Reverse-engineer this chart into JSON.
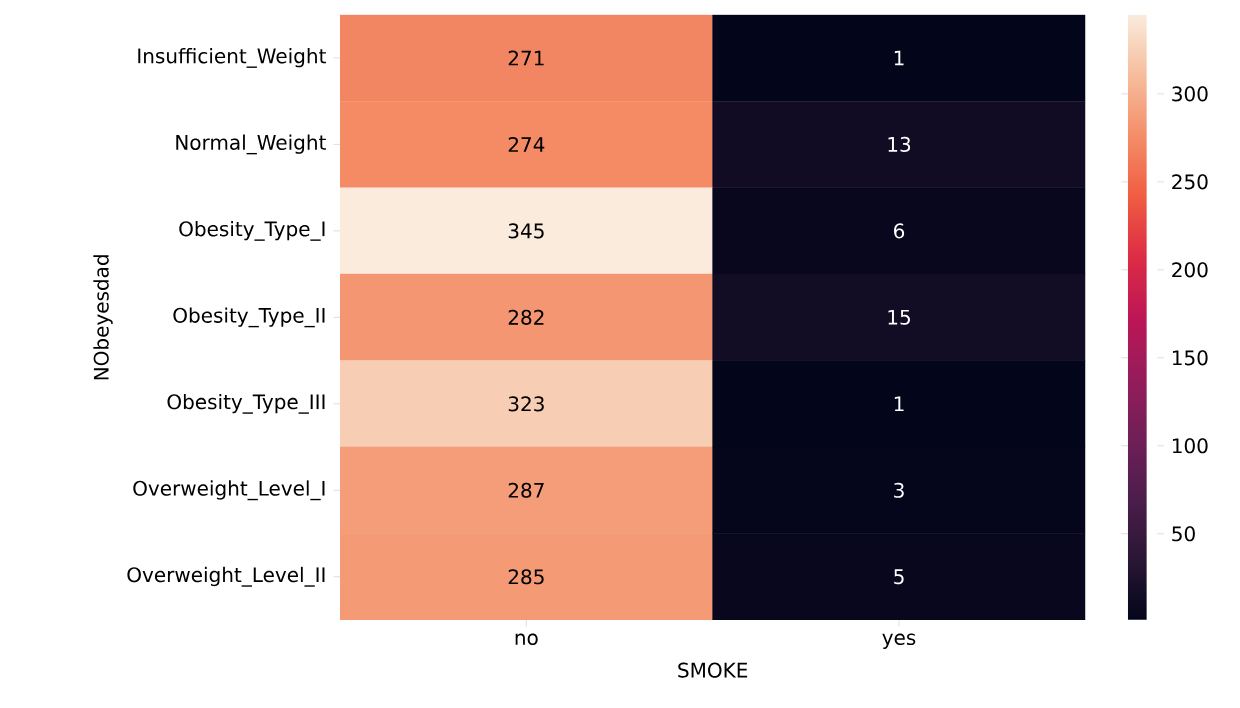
{
  "chart_data": {
    "type": "heatmap",
    "xlabel": "SMOKE",
    "ylabel": "NObeyesdad",
    "categories": [
      "no",
      "yes"
    ],
    "y_categories": [
      "Insufficient_Weight",
      "Normal_Weight",
      "Obesity_Type_I",
      "Obesity_Type_II",
      "Obesity_Type_III",
      "Overweight_Level_I",
      "Overweight_Level_II"
    ],
    "cells": [
      [
        271,
        1
      ],
      [
        274,
        13
      ],
      [
        345,
        6
      ],
      [
        282,
        15
      ],
      [
        323,
        1
      ],
      [
        287,
        3
      ],
      [
        285,
        5
      ]
    ],
    "cell_labels": [
      [
        "271",
        "1"
      ],
      [
        "274",
        "13"
      ],
      [
        "345",
        "6"
      ],
      [
        "282",
        "15"
      ],
      [
        "323",
        "1"
      ],
      [
        "287",
        "3"
      ],
      [
        "285",
        "5"
      ]
    ],
    "clim": [
      1,
      345
    ],
    "cticks": [
      50,
      100,
      150,
      200,
      250,
      300
    ]
  }
}
